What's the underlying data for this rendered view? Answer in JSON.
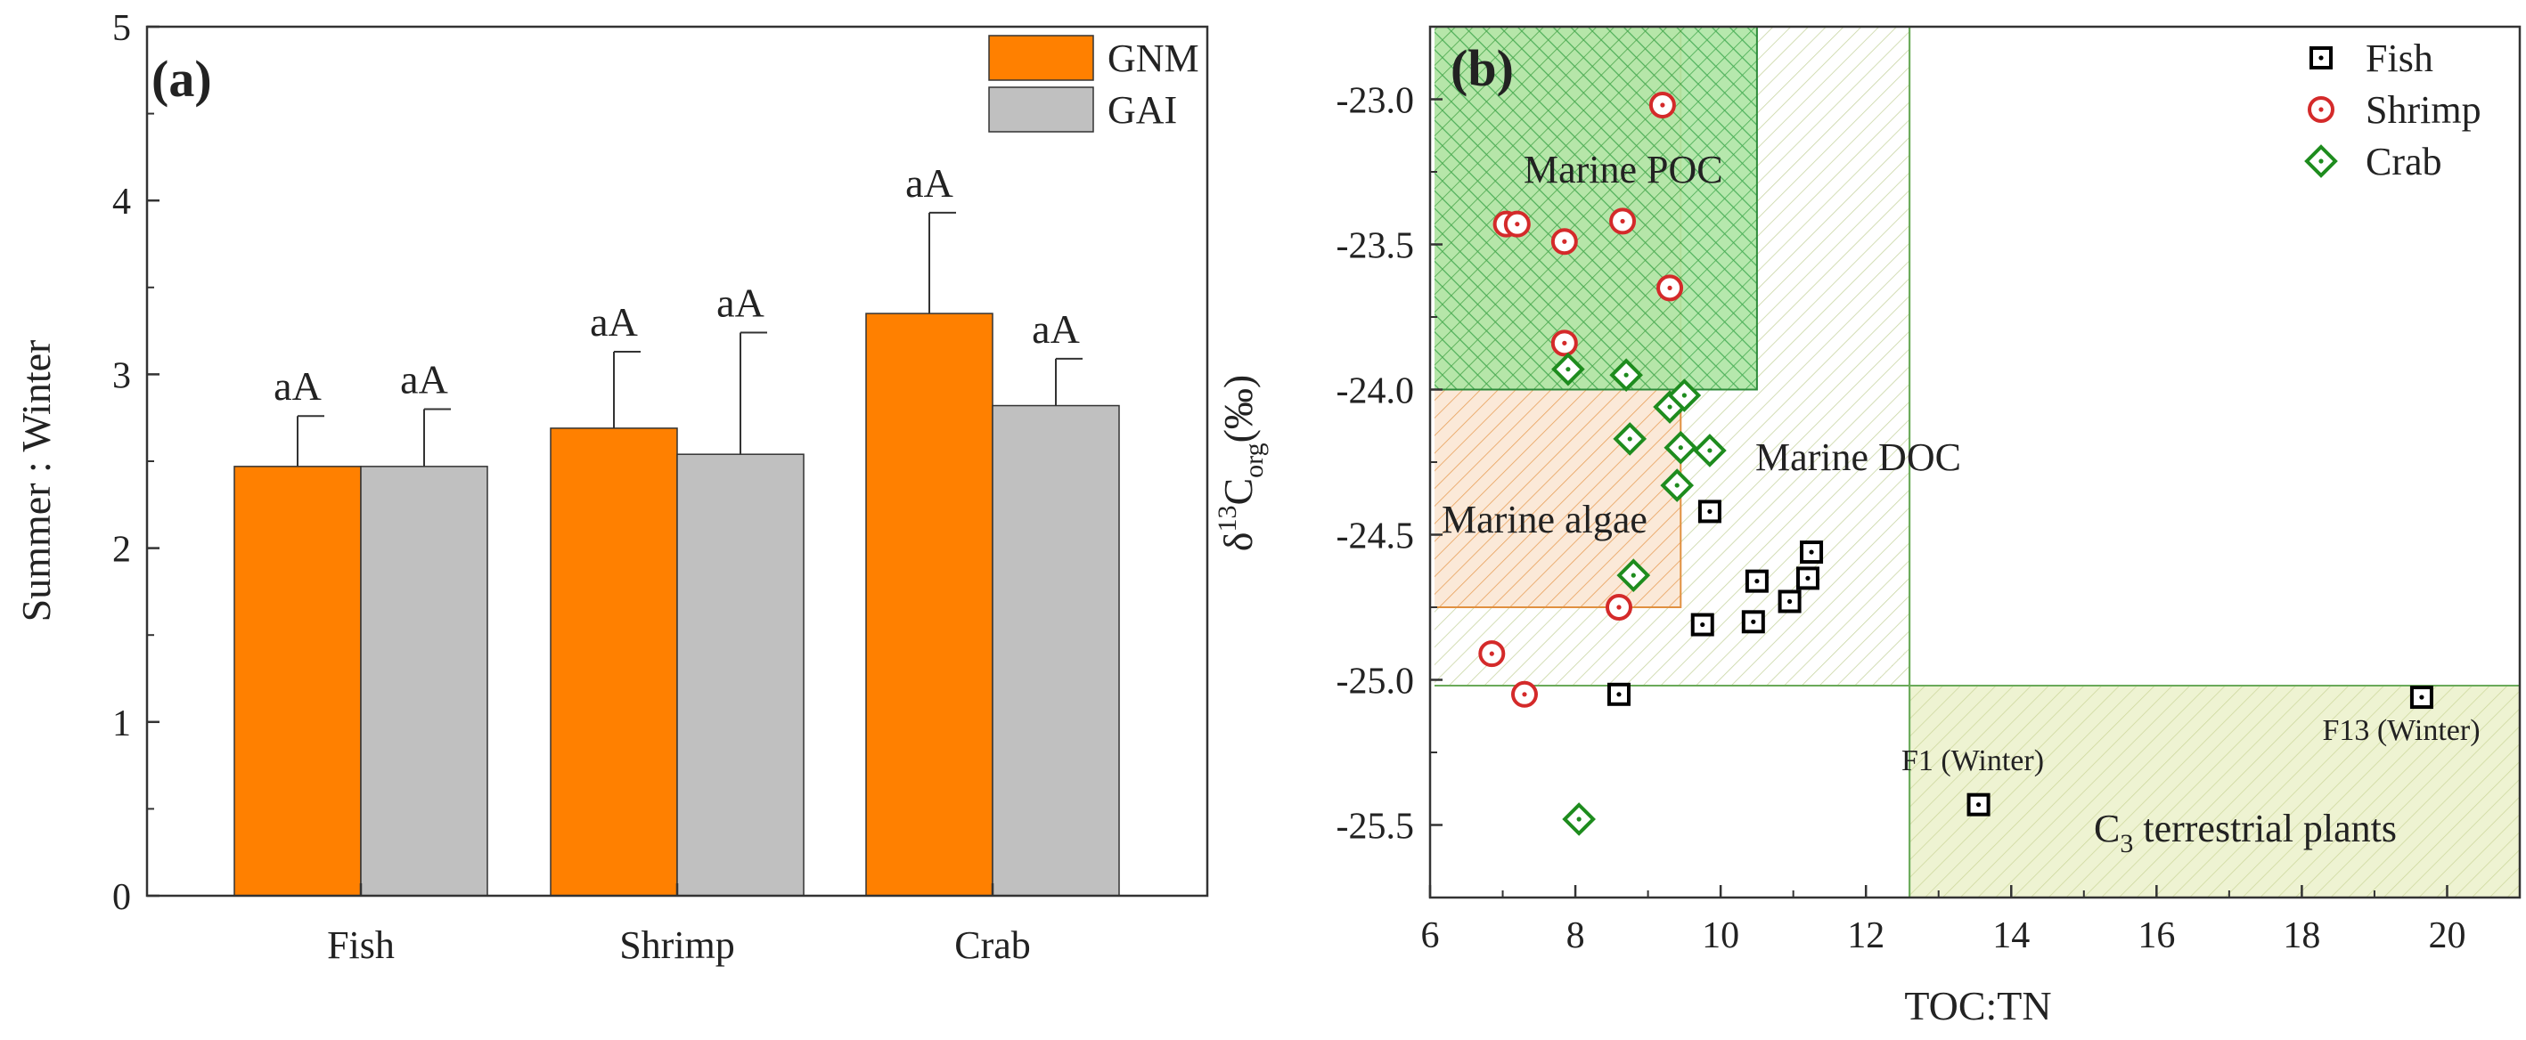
{
  "chart_data": [
    {
      "panel_label": "(a)",
      "type": "bar",
      "categories": [
        "Fish",
        "Shrimp",
        "Crab"
      ],
      "series": [
        {
          "name": "GNM",
          "color": "#ff8000",
          "values": [
            2.47,
            2.69,
            3.35
          ],
          "errors": [
            0.29,
            0.44,
            0.58
          ],
          "labels": [
            "aA",
            "aA",
            "aA"
          ]
        },
        {
          "name": "GAI",
          "color": "#c0c0c0",
          "values": [
            2.47,
            2.54,
            2.82
          ],
          "errors": [
            0.33,
            0.7,
            0.27
          ],
          "labels": [
            "aA",
            "aA",
            "aA"
          ]
        }
      ],
      "xlabel": "",
      "ylabel": "Summer : Winter",
      "ylim": [
        0,
        5
      ],
      "yticks": [
        "0",
        "1",
        "2",
        "3",
        "4",
        "5"
      ],
      "legend": "top-right"
    },
    {
      "panel_label": "(b)",
      "type": "scatter",
      "xlabel": "TOC:TN",
      "ylabel_main": "δ",
      "ylabel_sup": "13",
      "ylabel_c": "C",
      "ylabel_sub": "org",
      "ylabel_unit": "(‰)",
      "xlim": [
        6,
        21
      ],
      "ylim": [
        -25.75,
        -22.75
      ],
      "xticks": [
        "6",
        "8",
        "10",
        "12",
        "14",
        "16",
        "18",
        "20"
      ],
      "yticks": [
        "-25.5",
        "-25.0",
        "-24.5",
        "-24.0",
        "-23.5",
        "-23.0"
      ],
      "legend": "top-right",
      "regions": [
        {
          "name": "Marine POC",
          "x": [
            6,
            10.5
          ],
          "y": [
            -24.0,
            -22.75
          ],
          "fill": "#aee6a4",
          "hatch": "#3aa84a"
        },
        {
          "name": "Marine DOC",
          "x": [
            6,
            12.6
          ],
          "y": [
            -25.02,
            -22.75
          ],
          "fill": "#ffffff",
          "hatch": "#c9d6a4"
        },
        {
          "name": "Marine algae",
          "x": [
            6,
            9.45
          ],
          "y": [
            -24.75,
            -22.75
          ],
          "fill": "#fbe9d8",
          "hatch": "#e8a05a"
        },
        {
          "name": "C3 terrestrial plants",
          "x": [
            12.6,
            21
          ],
          "y": [
            -25.75,
            -25.02
          ],
          "fill": "#eef3d2",
          "hatch": "#cfd9a0"
        }
      ],
      "region_labels": {
        "marine_poc": "Marine POC",
        "marine_doc": "Marine DOC",
        "marine_algae": "Marine algae",
        "c3_prefix": "C",
        "c3_sub": "3",
        "c3_suffix": " terrestrial plants"
      },
      "series": [
        {
          "name": "Fish",
          "marker": "square",
          "color": "#000000",
          "points": [
            [
              9.85,
              -24.42
            ],
            [
              10.5,
              -24.66
            ],
            [
              11.25,
              -24.56
            ],
            [
              11.2,
              -24.65
            ],
            [
              10.95,
              -24.73
            ],
            [
              10.45,
              -24.8
            ],
            [
              9.75,
              -24.81
            ],
            [
              8.6,
              -25.05
            ],
            [
              13.55,
              -25.43
            ],
            [
              19.65,
              -25.06
            ]
          ]
        },
        {
          "name": "Shrimp",
          "marker": "circle",
          "color": "#d42a2a",
          "points": [
            [
              9.2,
              -23.02
            ],
            [
              7.05,
              -23.43
            ],
            [
              7.2,
              -23.43
            ],
            [
              8.65,
              -23.42
            ],
            [
              7.85,
              -23.49
            ],
            [
              9.3,
              -23.65
            ],
            [
              7.85,
              -23.84
            ],
            [
              8.6,
              -24.75
            ],
            [
              6.85,
              -24.91
            ],
            [
              7.3,
              -25.05
            ]
          ]
        },
        {
          "name": "Crab",
          "marker": "diamond",
          "color": "#1e8c1e",
          "points": [
            [
              7.9,
              -23.93
            ],
            [
              8.7,
              -23.95
            ],
            [
              9.3,
              -24.06
            ],
            [
              9.5,
              -24.02
            ],
            [
              8.75,
              -24.17
            ],
            [
              9.45,
              -24.2
            ],
            [
              9.85,
              -24.21
            ],
            [
              9.4,
              -24.33
            ],
            [
              8.8,
              -24.64
            ],
            [
              8.05,
              -25.48
            ]
          ]
        }
      ],
      "annotations": [
        {
          "text": "F1 (Winter)",
          "x": 13.55,
          "y": -25.43
        },
        {
          "text": "F13 (Winter)",
          "x": 19.65,
          "y": -25.06
        }
      ]
    }
  ]
}
